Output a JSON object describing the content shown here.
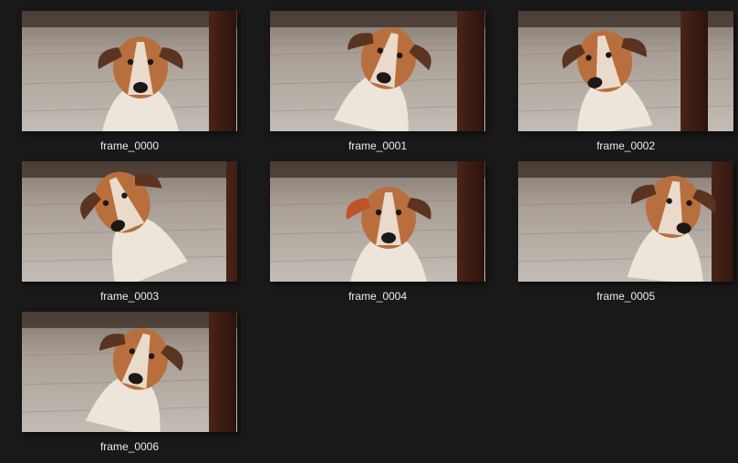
{
  "window": {
    "background": "#191919",
    "label_color": "#ececec"
  },
  "photo_colors": {
    "floor": "#a89e95",
    "floor_light": "#c4bdb5",
    "floor_dark": "#7d746c",
    "wall": "#3b2c24",
    "post": "#4a2418",
    "post_dark": "#2b130c",
    "fur_white": "#eee5da",
    "fur_tan": "#b86f3d",
    "fur_dark": "#5a3420",
    "nose": "#1c1816"
  },
  "thumbnails": [
    {
      "name": "frame_0000",
      "icon": "dog-photo-thumbnail",
      "pose": "front",
      "ear_highlight": false
    },
    {
      "name": "frame_0001",
      "icon": "dog-photo-thumbnail",
      "pose": "tilt-right",
      "ear_highlight": false
    },
    {
      "name": "frame_0002",
      "icon": "dog-photo-thumbnail",
      "pose": "look-left",
      "ear_highlight": false
    },
    {
      "name": "frame_0003",
      "icon": "dog-photo-thumbnail",
      "pose": "look-up-left",
      "ear_highlight": false
    },
    {
      "name": "frame_0004",
      "icon": "dog-photo-thumbnail",
      "pose": "front",
      "ear_highlight": true
    },
    {
      "name": "frame_0005",
      "icon": "dog-photo-thumbnail",
      "pose": "look-right",
      "ear_highlight": false
    },
    {
      "name": "frame_0006",
      "icon": "dog-photo-thumbnail",
      "pose": "tilt-right",
      "ear_highlight": false
    }
  ]
}
